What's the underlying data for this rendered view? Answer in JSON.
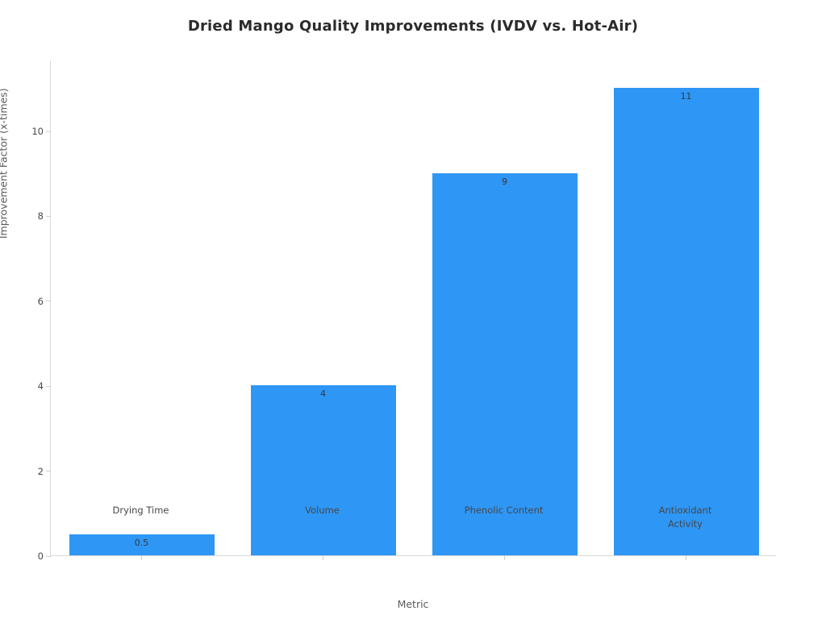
{
  "chart_data": {
    "type": "bar",
    "title": "Dried Mango Quality Improvements (IVDV vs. Hot-Air)",
    "xlabel": "Metric",
    "ylabel": "Improvement Factor (x-times)",
    "categories": [
      "Drying Time",
      "Volume",
      "Phenolic Content",
      "Antioxidant\nActivity"
    ],
    "values": [
      0.5,
      4,
      9,
      11
    ],
    "value_labels": [
      "0.5",
      "4",
      "9",
      "11"
    ],
    "yticks": [
      0,
      2,
      4,
      6,
      8,
      10
    ],
    "ylim": [
      0,
      11.67
    ],
    "bar_color": "#2e96f5",
    "grid": "off",
    "legend": "none"
  }
}
